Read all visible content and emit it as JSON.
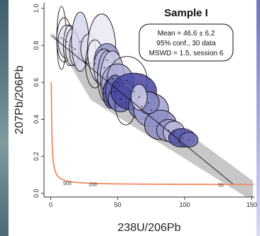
{
  "chart_data": {
    "type": "scatter",
    "title": "Sample I",
    "xlabel": "238U/206Pb",
    "ylabel": "207Pb/206Pb",
    "xlim": [
      -5,
      152
    ],
    "ylim": [
      -0.02,
      1.03
    ],
    "x_ticks": [
      "0",
      "50",
      "100",
      "150"
    ],
    "y_ticks": [
      "0.0",
      "0.2",
      "0.4",
      "0.6",
      "0.8",
      "1.0"
    ],
    "annotation": [
      "Mean = 46.6 ± 6.2",
      "95% conf., 30 data",
      "MSWD = 1.5, session 6"
    ],
    "concordia_labels": [
      {
        "label": "500",
        "x": 12.4,
        "y": 0.057
      },
      {
        "label": "200",
        "x": 31.5,
        "y": 0.05
      },
      {
        "label": "50",
        "x": 127.0,
        "y": 0.047
      }
    ],
    "regression": {
      "x0": 0,
      "y0": 0.855,
      "x1": 137,
      "y1": 0.045
    },
    "ellipses": [
      {
        "x": 8.0,
        "y": 0.84,
        "rx": 3.5,
        "ry": 0.17,
        "shade": 0
      },
      {
        "x": 10.0,
        "y": 0.83,
        "rx": 5.5,
        "ry": 0.12,
        "shade": 0
      },
      {
        "x": 12.0,
        "y": 0.82,
        "rx": 6.5,
        "ry": 0.09,
        "shade": 0.1
      },
      {
        "x": 14.0,
        "y": 0.8,
        "rx": 4.5,
        "ry": 0.11,
        "shade": 0
      },
      {
        "x": 16.0,
        "y": 0.79,
        "rx": 5.0,
        "ry": 0.1,
        "shade": 0.1
      },
      {
        "x": 18.0,
        "y": 0.78,
        "rx": 4.0,
        "ry": 0.09,
        "shade": 0
      },
      {
        "x": 22.0,
        "y": 0.82,
        "rx": 6.5,
        "ry": 0.16,
        "shade": 0.15
      },
      {
        "x": 28.0,
        "y": 0.78,
        "rx": 5.5,
        "ry": 0.08,
        "shade": 0
      },
      {
        "x": 38.0,
        "y": 0.78,
        "rx": 10.5,
        "ry": 0.19,
        "shade": 0.05
      },
      {
        "x": 33.0,
        "y": 0.7,
        "rx": 7.0,
        "ry": 0.13,
        "shade": 0
      },
      {
        "x": 42.0,
        "y": 0.72,
        "rx": 9.5,
        "ry": 0.09,
        "shade": 0.5
      },
      {
        "x": 40.0,
        "y": 0.68,
        "rx": 8.0,
        "ry": 0.1,
        "shade": 0.3
      },
      {
        "x": 42.0,
        "y": 0.63,
        "rx": 7.0,
        "ry": 0.14,
        "shade": 0
      },
      {
        "x": 46.0,
        "y": 0.62,
        "rx": 9.0,
        "ry": 0.15,
        "shade": 0.2
      },
      {
        "x": 50.0,
        "y": 0.6,
        "rx": 12.0,
        "ry": 0.1,
        "shade": 0.4
      },
      {
        "x": 57.0,
        "y": 0.61,
        "rx": 15.0,
        "ry": 0.13,
        "shade": 0
      },
      {
        "x": 45.0,
        "y": 0.54,
        "rx": 6.0,
        "ry": 0.08,
        "shade": 0.9
      },
      {
        "x": 48.0,
        "y": 0.55,
        "rx": 7.0,
        "ry": 0.09,
        "shade": 0.75
      },
      {
        "x": 52.0,
        "y": 0.51,
        "rx": 9.0,
        "ry": 0.07,
        "shade": 0.65
      },
      {
        "x": 56.0,
        "y": 0.49,
        "rx": 8.0,
        "ry": 0.12,
        "shade": 0
      },
      {
        "x": 62.0,
        "y": 0.55,
        "rx": 17.0,
        "ry": 0.1,
        "shade": 0.95
      },
      {
        "x": 68.0,
        "y": 0.47,
        "rx": 10.0,
        "ry": 0.07,
        "shade": 0.7
      },
      {
        "x": 75.0,
        "y": 0.45,
        "rx": 13.0,
        "ry": 0.09,
        "shade": 0.45
      },
      {
        "x": 82.0,
        "y": 0.37,
        "rx": 12.0,
        "ry": 0.08,
        "shade": 0.55
      },
      {
        "x": 88.0,
        "y": 0.34,
        "rx": 9.0,
        "ry": 0.06,
        "shade": 0.5
      },
      {
        "x": 92.0,
        "y": 0.33,
        "rx": 8.0,
        "ry": 0.06,
        "shade": 0.3
      },
      {
        "x": 98.0,
        "y": 0.3,
        "rx": 10.0,
        "ry": 0.05,
        "shade": 0.9
      },
      {
        "x": 103.0,
        "y": 0.29,
        "rx": 7.0,
        "ry": 0.04,
        "shade": 0.7
      },
      {
        "x": 73.0,
        "y": 0.49,
        "rx": 8.0,
        "ry": 0.06,
        "shade": 0.6
      },
      {
        "x": 66.0,
        "y": 0.52,
        "rx": 6.0,
        "ry": 0.07,
        "shade": 0.2
      }
    ]
  },
  "colors": {
    "ellipse_light": "#f2f2fb",
    "ellipse_dark": "#3b3b9b",
    "concordia": "#f08a60",
    "band": "#bdbdbd",
    "axis": "#333333"
  }
}
